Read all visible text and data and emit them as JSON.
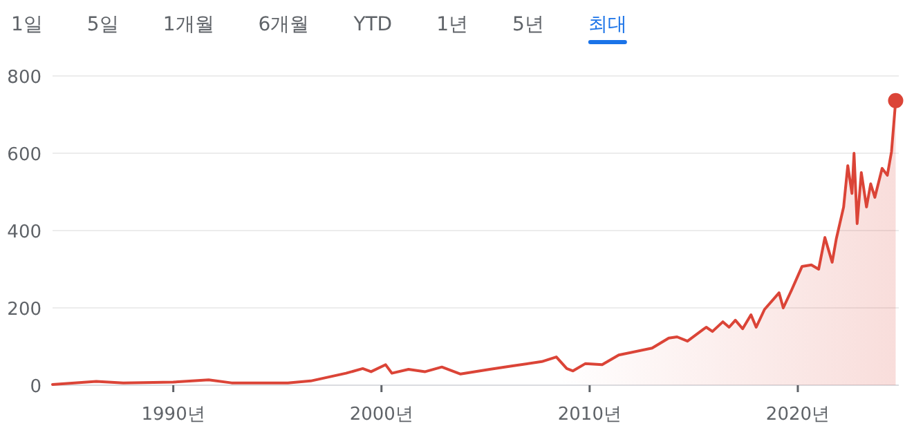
{
  "chart_data": {
    "type": "area",
    "annotations": [
      "1일",
      "5일",
      "1개월",
      "6개월",
      "YTD",
      "1년",
      "5년",
      "최대"
    ],
    "xlim": [
      1984.2,
      2024.85
    ],
    "ylim": [
      0,
      800
    ],
    "xticks": [
      {
        "value": 1990,
        "label": "1990년"
      },
      {
        "value": 2000,
        "label": "2000년"
      },
      {
        "value": 2010,
        "label": "2010년"
      },
      {
        "value": 2020,
        "label": "2020년"
      }
    ],
    "yticks": [
      0,
      200,
      400,
      600,
      800
    ],
    "grid": "y",
    "series": [
      {
        "color": "#db4437",
        "x": [
          1984.2,
          1986.3,
          1987.6,
          1990.0,
          1991.7,
          1992.8,
          1995.5,
          1996.6,
          1998.3,
          1999.1,
          1999.5,
          2000.2,
          2000.5,
          2001.3,
          2002.1,
          2002.9,
          2003.8,
          2005.2,
          2006.3,
          2007.7,
          2008.4,
          2008.9,
          2009.2,
          2009.8,
          2010.6,
          2011.4,
          2013.0,
          2013.8,
          2014.2,
          2014.7,
          2015.6,
          2015.9,
          2016.4,
          2016.7,
          2017.0,
          2017.35,
          2017.75,
          2018.0,
          2018.4,
          2019.1,
          2019.3,
          2019.7,
          2020.2,
          2020.65,
          2021.0,
          2021.3,
          2021.65,
          2021.85,
          2022.2,
          2022.4,
          2022.6,
          2022.7,
          2022.85,
          2023.05,
          2023.3,
          2023.5,
          2023.7,
          2024.05,
          2024.3,
          2024.5,
          2024.7
        ],
        "values": [
          2,
          10,
          6,
          8,
          14,
          6,
          6,
          11,
          31,
          43,
          35,
          53,
          31,
          41,
          35,
          47,
          29,
          41,
          50,
          61,
          73,
          43,
          37,
          56,
          53,
          78,
          96,
          122,
          125,
          114,
          150,
          139,
          164,
          150,
          168,
          146,
          182,
          150,
          196,
          239,
          200,
          246,
          307,
          311,
          300,
          382,
          318,
          379,
          461,
          568,
          496,
          600,
          418,
          550,
          461,
          521,
          486,
          561,
          543,
          604,
          736
        ]
      },
      {
        "type": "scatter",
        "color": "#db4437",
        "x": [
          2024.7
        ],
        "values": [
          736
        ]
      }
    ]
  }
}
